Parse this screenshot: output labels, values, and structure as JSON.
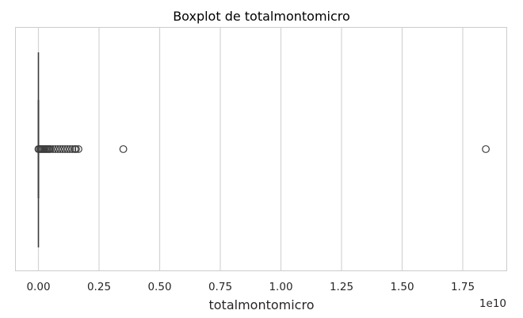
{
  "chart_data": {
    "type": "boxplot",
    "title": "Boxplot de totalmontomicro",
    "xlabel": "totalmontomicro",
    "ylabel": "",
    "x_offset_label": "1e10",
    "x_ticks": [
      0,
      0.25,
      0.5,
      0.75,
      1.0,
      1.25,
      1.5,
      1.75
    ],
    "x_tick_labels": [
      "0.00",
      "0.25",
      "0.50",
      "0.75",
      "1.00",
      "1.25",
      "1.50",
      "1.75"
    ],
    "xlim": [
      -0.095,
      1.93
    ],
    "x_scale_factor": 10000000000,
    "grid": "vertical",
    "orientation": "horizontal",
    "box": {
      "min": 0,
      "q1": 0,
      "median": 0,
      "q3": 0,
      "max": 0.003
    },
    "outliers": [
      0.0,
      0.005,
      0.01,
      0.015,
      0.02,
      0.025,
      0.03,
      0.035,
      0.04,
      0.045,
      0.05,
      0.06,
      0.07,
      0.08,
      0.09,
      0.1,
      0.11,
      0.12,
      0.13,
      0.14,
      0.15,
      0.165,
      0.155,
      0.35,
      1.845
    ],
    "colors": {
      "box_line": "#3d3d3d",
      "grid": "#d4d4d4",
      "spine": "#cccccc",
      "outlier_edge": "#3d3d3d"
    }
  }
}
